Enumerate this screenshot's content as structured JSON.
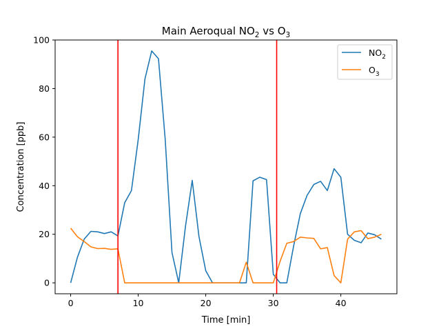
{
  "chart_data": {
    "type": "line",
    "title": "Main Aeroqual NO₂ vs O₃",
    "title_parts": {
      "prefix": "Main Aeroqual NO",
      "sub1": "2",
      "mid": " vs O",
      "sub2": "3"
    },
    "xlabel": "Time [min]",
    "ylabel": "Concentration [ppb]",
    "xlim": [
      -2.3,
      48.3
    ],
    "ylim": [
      -4.5,
      100
    ],
    "xticks": [
      0,
      10,
      20,
      30,
      40
    ],
    "yticks": [
      0,
      20,
      40,
      60,
      80,
      100
    ],
    "grid": false,
    "legend_position": "top-right",
    "vertical_lines": {
      "color": "#ff0000",
      "x": [
        7,
        30.5
      ]
    },
    "series": [
      {
        "name": "NO₂",
        "name_parts": {
          "base": "NO",
          "sub": "2"
        },
        "color": "#1f77b4",
        "x": [
          0,
          1,
          2,
          3,
          4,
          5,
          6,
          7,
          8,
          9,
          10,
          11,
          12,
          13,
          14,
          15,
          16,
          17,
          18,
          19,
          20,
          21,
          22,
          23,
          24,
          25,
          26,
          27,
          28,
          29,
          30,
          31,
          32,
          33,
          34,
          35,
          36,
          37,
          38,
          39,
          40,
          41,
          42,
          43,
          44,
          45,
          46
        ],
        "y": [
          0,
          10.5,
          18,
          21.2,
          21,
          20.3,
          21,
          19.3,
          33,
          38,
          59,
          84,
          95.5,
          92.3,
          59,
          12.5,
          0,
          23.3,
          42.2,
          19,
          5,
          0,
          0,
          0,
          0,
          0,
          0,
          42,
          43.5,
          42.5,
          3.5,
          0,
          0,
          15,
          28.5,
          36,
          40.5,
          41.8,
          38,
          47,
          43.5,
          20,
          17.5,
          16.5,
          20.5,
          19.8,
          18
        ]
      },
      {
        "name": "O₃",
        "name_parts": {
          "base": "O",
          "sub": "3"
        },
        "color": "#ff7f0e",
        "x": [
          0,
          1,
          2,
          3,
          4,
          5,
          6,
          7,
          8,
          9,
          10,
          11,
          12,
          13,
          14,
          15,
          16,
          17,
          18,
          19,
          20,
          21,
          22,
          23,
          24,
          25,
          26,
          27,
          28,
          29,
          30,
          31,
          32,
          33,
          34,
          35,
          36,
          37,
          38,
          39,
          40,
          41,
          42,
          43,
          44,
          45,
          46
        ],
        "y": [
          22.5,
          19,
          17,
          14.8,
          14.1,
          14.2,
          13.8,
          14,
          0,
          0,
          0,
          0,
          0,
          0,
          0,
          0,
          0,
          0,
          0,
          0,
          0,
          0,
          0,
          0,
          0,
          0,
          8.5,
          0,
          0,
          0,
          0,
          8.8,
          16.3,
          17,
          18.8,
          18.5,
          18.3,
          14,
          14.5,
          3,
          0,
          18,
          21,
          21.5,
          18.2,
          18.8,
          20
        ]
      }
    ]
  }
}
